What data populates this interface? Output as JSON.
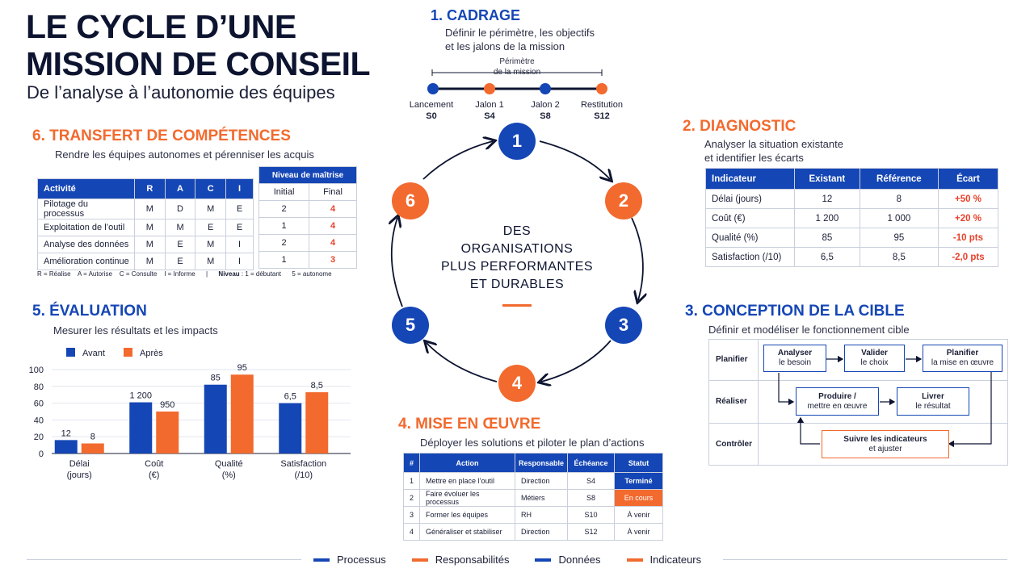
{
  "header": {
    "title_line1": "LE CYCLE D’UNE",
    "title_line2": "MISSION DE CONSEIL",
    "subtitle": "De l’analyse à l’autonomie des équipes"
  },
  "colors": {
    "navy": "#0d1430",
    "blue": "#1546b5",
    "orange": "#f26a2e",
    "red": "#e8412a"
  },
  "center": {
    "line1": "DES",
    "line2": "ORGANISATIONS",
    "line3": "PLUS PERFORMANTES",
    "line4": "ET DURABLES"
  },
  "cycle_steps": [
    "1",
    "2",
    "3",
    "4",
    "5",
    "6"
  ],
  "cadrage": {
    "title": "1. CADRAGE",
    "desc_line1": "Définir le périmètre, les objectifs",
    "desc_line2": "et les jalons de la mission",
    "scope_line1": "Périmètre",
    "scope_line2": "de la mission",
    "milestones": [
      {
        "label": "Lancement",
        "week": "S0"
      },
      {
        "label": "Jalon 1",
        "week": "S4"
      },
      {
        "label": "Jalon 2",
        "week": "S8"
      },
      {
        "label": "Restitution",
        "week": "S12"
      }
    ]
  },
  "diagnostic": {
    "title": "2. DIAGNOSTIC",
    "desc_line1": "Analyser la situation existante",
    "desc_line2": "et identifier les écarts",
    "headers": [
      "Indicateur",
      "Existant",
      "Référence",
      "Écart"
    ],
    "rows": [
      [
        "Délai (jours)",
        "12",
        "8",
        "+50 %"
      ],
      [
        "Coût (€)",
        "1 200",
        "1 000",
        "+20 %"
      ],
      [
        "Qualité (%)",
        "85",
        "95",
        "-10 pts"
      ],
      [
        "Satisfaction (/10)",
        "6,5",
        "8,5",
        "-2,0 pts"
      ]
    ]
  },
  "conception": {
    "title": "3. CONCEPTION DE LA CIBLE",
    "desc": "Définir et modéliser le fonctionnement cible",
    "lanes": [
      "Planifier",
      "Réaliser",
      "Contrôler"
    ],
    "box_analyser_1": "Analyser",
    "box_analyser_2": "le besoin",
    "box_valider_1": "Valider",
    "box_valider_2": "le choix",
    "box_planifier_1": "Planifier",
    "box_planifier_2": "la mise en œuvre",
    "box_produire_1": "Produire /",
    "box_produire_2": "mettre en œuvre",
    "box_livrer_1": "Livrer",
    "box_livrer_2": "le résultat",
    "box_suivre_1": "Suivre les indicateurs",
    "box_suivre_2": "et ajuster"
  },
  "mise_en_oeuvre": {
    "title": "4. MISE EN ŒUVRE",
    "desc": "Déployer les solutions et piloter le plan d’actions",
    "headers": [
      "#",
      "Action",
      "Responsable",
      "Échéance",
      "Statut"
    ],
    "rows": [
      [
        "1",
        "Mettre en place l’outil",
        "Direction",
        "S4",
        "Terminé"
      ],
      [
        "2",
        "Faire évoluer les processus",
        "Métiers",
        "S8",
        "En cours"
      ],
      [
        "3",
        "Former les équipes",
        "RH",
        "S10",
        "À venir"
      ],
      [
        "4",
        "Généraliser et stabiliser",
        "Direction",
        "S12",
        "À venir"
      ]
    ]
  },
  "evaluation": {
    "title": "5. ÉVALUATION",
    "desc": "Mesurer les résultats et les impacts"
  },
  "chart_data": {
    "type": "bar",
    "categories": [
      "Délai (jours)",
      "Coût (€)",
      "Qualité (%)",
      "Satisfaction (/10)"
    ],
    "category_lines": [
      [
        "Délai",
        "(jours)"
      ],
      [
        "Coût",
        "(€)"
      ],
      [
        "Qualité",
        "(%)"
      ],
      [
        "Satisfaction",
        "(/10)"
      ]
    ],
    "series": [
      {
        "name": "Avant",
        "color": "#1546b5",
        "labels": [
          "12",
          "1 200",
          "85",
          "6,5"
        ],
        "plot_values": [
          16,
          61,
          82,
          60
        ]
      },
      {
        "name": "Après",
        "color": "#f26a2e",
        "labels": [
          "8",
          "950",
          "95",
          "8,5"
        ],
        "plot_values": [
          12,
          50,
          94,
          73
        ]
      }
    ],
    "yticks": [
      "0",
      "20",
      "40",
      "60",
      "80",
      "100"
    ],
    "ylim": [
      0,
      100
    ],
    "legend_position": "top"
  },
  "transfert": {
    "title": "6. TRANSFERT DE COMPÉTENCES",
    "desc": "Rendre les équipes autonomes et pérenniser les acquis",
    "headers": [
      "Activité",
      "R",
      "A",
      "C",
      "I"
    ],
    "level_header": "Niveau de maîtrise",
    "level_sub": [
      "Initial",
      "Final"
    ],
    "rows": [
      [
        "Pilotage du processus",
        "M",
        "D",
        "M",
        "E",
        "2",
        "4"
      ],
      [
        "Exploitation de l’outil",
        "M",
        "M",
        "E",
        "E",
        "1",
        "4"
      ],
      [
        "Analyse des données",
        "M",
        "E",
        "M",
        "I",
        "2",
        "4"
      ],
      [
        "Amélioration continue",
        "M",
        "E",
        "M",
        "I",
        "1",
        "3"
      ]
    ],
    "legend_raci": "R = Réalise    A = Autorise    C = Consulte    I = Informe",
    "legend_sep": "|",
    "legend_level_bold": "Niveau",
    "legend_level": " : 1 = débutant      5 = autonome"
  },
  "footer": {
    "items": [
      {
        "label": "Processus",
        "color": "#1546b5"
      },
      {
        "label": "Responsabilités",
        "color": "#f26a2e"
      },
      {
        "label": "Données",
        "color": "#1546b5"
      },
      {
        "label": "Indicateurs",
        "color": "#f26a2e"
      }
    ]
  }
}
